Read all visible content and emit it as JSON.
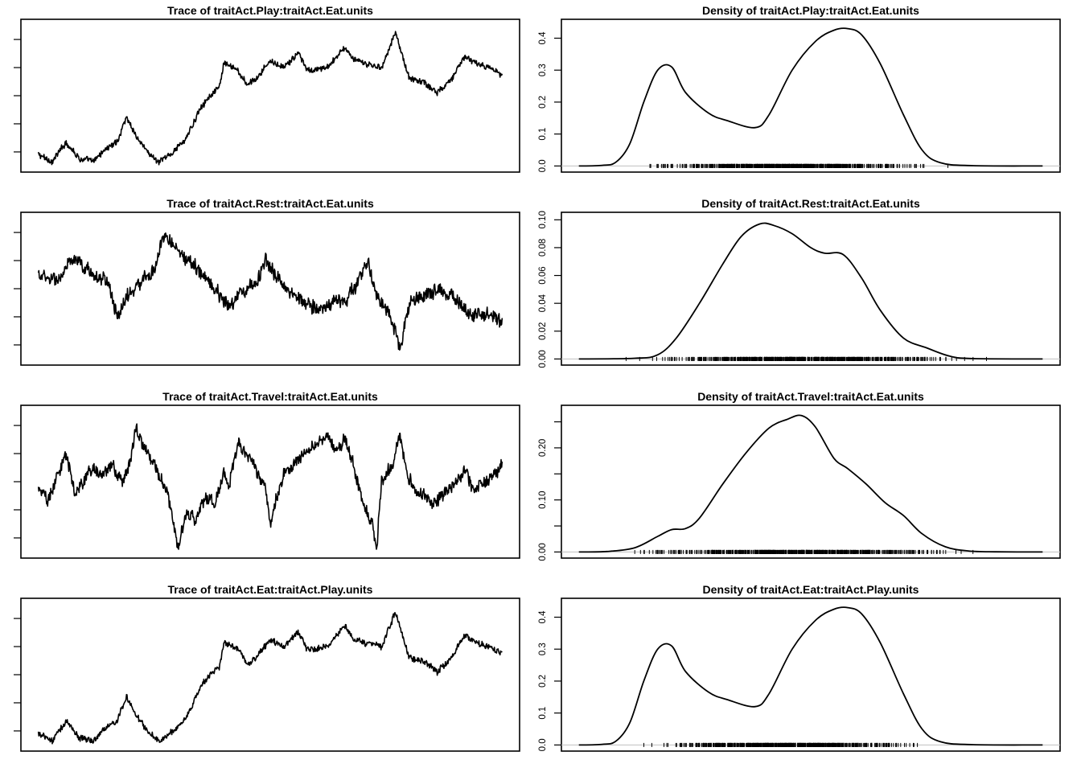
{
  "figure": {
    "colors": {
      "line": "#000000",
      "rug": "#000000",
      "baseline": "#bfbfbf",
      "frame": "#000000"
    }
  },
  "chart_data": [
    {
      "id": "trace1",
      "type": "line",
      "title": "Trace of traitAct.Play:traitAct.Eat.units",
      "xlabel": "",
      "ylabel": "",
      "ylim": [
        0,
        1
      ],
      "ytick_count": 5,
      "y_tick_labels_visible": false,
      "x_axis_visible": false,
      "noise": 0.006,
      "anchors": [
        [
          0.0,
          0.08
        ],
        [
          0.03,
          0.03
        ],
        [
          0.06,
          0.17
        ],
        [
          0.09,
          0.05
        ],
        [
          0.12,
          0.03
        ],
        [
          0.14,
          0.11
        ],
        [
          0.17,
          0.17
        ],
        [
          0.19,
          0.35
        ],
        [
          0.21,
          0.22
        ],
        [
          0.23,
          0.12
        ],
        [
          0.26,
          0.02
        ],
        [
          0.29,
          0.1
        ],
        [
          0.32,
          0.2
        ],
        [
          0.35,
          0.42
        ],
        [
          0.37,
          0.5
        ],
        [
          0.39,
          0.55
        ],
        [
          0.4,
          0.73
        ],
        [
          0.43,
          0.68
        ],
        [
          0.45,
          0.58
        ],
        [
          0.47,
          0.62
        ],
        [
          0.5,
          0.75
        ],
        [
          0.53,
          0.7
        ],
        [
          0.56,
          0.8
        ],
        [
          0.58,
          0.68
        ],
        [
          0.6,
          0.68
        ],
        [
          0.63,
          0.72
        ],
        [
          0.66,
          0.85
        ],
        [
          0.68,
          0.75
        ],
        [
          0.71,
          0.72
        ],
        [
          0.74,
          0.7
        ],
        [
          0.77,
          0.95
        ],
        [
          0.8,
          0.62
        ],
        [
          0.83,
          0.6
        ],
        [
          0.86,
          0.52
        ],
        [
          0.89,
          0.62
        ],
        [
          0.92,
          0.78
        ],
        [
          0.95,
          0.72
        ],
        [
          0.97,
          0.7
        ],
        [
          1.0,
          0.65
        ]
      ]
    },
    {
      "id": "density1",
      "type": "line",
      "title": "Density of traitAct.Play:traitAct.Eat.units",
      "xlabel": "",
      "ylabel": "",
      "xlim": [
        0,
        1
      ],
      "ylim": [
        0,
        0.44
      ],
      "yticks": [
        0.0,
        0.1,
        0.2,
        0.3,
        0.4
      ],
      "ytick_labels": [
        "0.0",
        "0.1",
        "0.2",
        "0.3",
        "0.4"
      ],
      "x_axis_visible": false,
      "curve": [
        [
          0.0,
          0.0
        ],
        [
          0.05,
          0.002
        ],
        [
          0.08,
          0.012
        ],
        [
          0.11,
          0.07
        ],
        [
          0.14,
          0.2
        ],
        [
          0.17,
          0.3
        ],
        [
          0.2,
          0.31
        ],
        [
          0.23,
          0.23
        ],
        [
          0.28,
          0.165
        ],
        [
          0.32,
          0.142
        ],
        [
          0.38,
          0.12
        ],
        [
          0.41,
          0.16
        ],
        [
          0.46,
          0.3
        ],
        [
          0.51,
          0.39
        ],
        [
          0.55,
          0.425
        ],
        [
          0.58,
          0.43
        ],
        [
          0.61,
          0.41
        ],
        [
          0.65,
          0.32
        ],
        [
          0.7,
          0.16
        ],
        [
          0.74,
          0.05
        ],
        [
          0.78,
          0.01
        ],
        [
          0.85,
          0.001
        ],
        [
          1.0,
          0.0
        ]
      ],
      "rug_range": [
        0.1,
        0.8
      ]
    },
    {
      "id": "trace2",
      "type": "line",
      "title": "Trace of traitAct.Rest:traitAct.Eat.units",
      "xlabel": "",
      "ylabel": "",
      "ylim": [
        0,
        1
      ],
      "ytick_count": 5,
      "y_tick_labels_visible": false,
      "x_axis_visible": false,
      "noise": 0.014,
      "anchors": [
        [
          0.0,
          0.6
        ],
        [
          0.04,
          0.55
        ],
        [
          0.07,
          0.7
        ],
        [
          0.1,
          0.65
        ],
        [
          0.13,
          0.58
        ],
        [
          0.15,
          0.55
        ],
        [
          0.17,
          0.3
        ],
        [
          0.19,
          0.45
        ],
        [
          0.21,
          0.5
        ],
        [
          0.23,
          0.58
        ],
        [
          0.25,
          0.62
        ],
        [
          0.27,
          0.88
        ],
        [
          0.3,
          0.78
        ],
        [
          0.32,
          0.7
        ],
        [
          0.35,
          0.62
        ],
        [
          0.38,
          0.5
        ],
        [
          0.41,
          0.38
        ],
        [
          0.43,
          0.45
        ],
        [
          0.47,
          0.55
        ],
        [
          0.49,
          0.7
        ],
        [
          0.52,
          0.55
        ],
        [
          0.55,
          0.45
        ],
        [
          0.58,
          0.4
        ],
        [
          0.61,
          0.35
        ],
        [
          0.64,
          0.42
        ],
        [
          0.66,
          0.4
        ],
        [
          0.69,
          0.55
        ],
        [
          0.71,
          0.7
        ],
        [
          0.73,
          0.45
        ],
        [
          0.75,
          0.35
        ],
        [
          0.77,
          0.2
        ],
        [
          0.78,
          0.05
        ],
        [
          0.8,
          0.4
        ],
        [
          0.83,
          0.45
        ],
        [
          0.86,
          0.5
        ],
        [
          0.89,
          0.45
        ],
        [
          0.92,
          0.35
        ],
        [
          0.95,
          0.3
        ],
        [
          0.97,
          0.33
        ],
        [
          1.0,
          0.25
        ]
      ]
    },
    {
      "id": "density2",
      "type": "line",
      "title": "Density of traitAct.Rest:traitAct.Eat.units",
      "xlabel": "",
      "ylabel": "",
      "xlim": [
        0,
        1
      ],
      "ylim": [
        0,
        0.101
      ],
      "yticks": [
        0.0,
        0.02,
        0.04,
        0.06,
        0.08,
        0.1
      ],
      "ytick_labels": [
        "0.00",
        "0.02",
        "0.04",
        "0.06",
        "0.08",
        "0.10"
      ],
      "x_axis_visible": false,
      "curve": [
        [
          0.0,
          0.0
        ],
        [
          0.12,
          0.0005
        ],
        [
          0.17,
          0.003
        ],
        [
          0.21,
          0.015
        ],
        [
          0.26,
          0.04
        ],
        [
          0.31,
          0.068
        ],
        [
          0.35,
          0.088
        ],
        [
          0.39,
          0.097
        ],
        [
          0.42,
          0.096
        ],
        [
          0.46,
          0.09
        ],
        [
          0.5,
          0.08
        ],
        [
          0.53,
          0.076
        ],
        [
          0.57,
          0.075
        ],
        [
          0.61,
          0.058
        ],
        [
          0.65,
          0.035
        ],
        [
          0.7,
          0.015
        ],
        [
          0.75,
          0.008
        ],
        [
          0.8,
          0.002
        ],
        [
          0.85,
          0.0003
        ],
        [
          1.0,
          0.0
        ]
      ],
      "rug_range": [
        0.07,
        0.9
      ]
    },
    {
      "id": "trace3",
      "type": "line",
      "title": "Trace of traitAct.Travel:traitAct.Eat.units",
      "xlabel": "",
      "ylabel": "",
      "ylim": [
        0,
        1
      ],
      "ytick_count": 5,
      "y_tick_labels_visible": false,
      "x_axis_visible": false,
      "noise": 0.013,
      "anchors": [
        [
          0.0,
          0.48
        ],
        [
          0.02,
          0.35
        ],
        [
          0.04,
          0.55
        ],
        [
          0.06,
          0.7
        ],
        [
          0.08,
          0.4
        ],
        [
          0.1,
          0.52
        ],
        [
          0.12,
          0.6
        ],
        [
          0.14,
          0.55
        ],
        [
          0.16,
          0.62
        ],
        [
          0.18,
          0.48
        ],
        [
          0.2,
          0.68
        ],
        [
          0.21,
          0.9
        ],
        [
          0.22,
          0.8
        ],
        [
          0.24,
          0.68
        ],
        [
          0.26,
          0.55
        ],
        [
          0.28,
          0.4
        ],
        [
          0.29,
          0.25
        ],
        [
          0.3,
          0.05
        ],
        [
          0.32,
          0.28
        ],
        [
          0.34,
          0.22
        ],
        [
          0.36,
          0.4
        ],
        [
          0.38,
          0.35
        ],
        [
          0.4,
          0.55
        ],
        [
          0.41,
          0.45
        ],
        [
          0.43,
          0.78
        ],
        [
          0.45,
          0.7
        ],
        [
          0.47,
          0.58
        ],
        [
          0.49,
          0.45
        ],
        [
          0.5,
          0.2
        ],
        [
          0.51,
          0.35
        ],
        [
          0.53,
          0.55
        ],
        [
          0.56,
          0.68
        ],
        [
          0.58,
          0.72
        ],
        [
          0.6,
          0.75
        ],
        [
          0.62,
          0.82
        ],
        [
          0.64,
          0.72
        ],
        [
          0.66,
          0.82
        ],
        [
          0.68,
          0.6
        ],
        [
          0.7,
          0.35
        ],
        [
          0.72,
          0.2
        ],
        [
          0.73,
          0.05
        ],
        [
          0.74,
          0.52
        ],
        [
          0.76,
          0.6
        ],
        [
          0.78,
          0.82
        ],
        [
          0.8,
          0.5
        ],
        [
          0.82,
          0.42
        ],
        [
          0.85,
          0.35
        ],
        [
          0.87,
          0.4
        ],
        [
          0.9,
          0.5
        ],
        [
          0.92,
          0.58
        ],
        [
          0.94,
          0.45
        ],
        [
          0.96,
          0.5
        ],
        [
          0.98,
          0.55
        ],
        [
          1.0,
          0.62
        ]
      ]
    },
    {
      "id": "density3",
      "type": "line",
      "title": "Density of traitAct.Travel:traitAct.Eat.units",
      "xlabel": "",
      "ylabel": "",
      "xlim": [
        0,
        1
      ],
      "ylim": [
        0,
        0.27
      ],
      "yticks": [
        0.0,
        0.1,
        0.2
      ],
      "ytick_labels": [
        "0.00",
        "0.10",
        "0.20"
      ],
      "y_minor_ticks": [
        0.05,
        0.15,
        0.25
      ],
      "x_axis_visible": false,
      "curve": [
        [
          0.0,
          0.0
        ],
        [
          0.06,
          0.001
        ],
        [
          0.12,
          0.008
        ],
        [
          0.17,
          0.03
        ],
        [
          0.2,
          0.043
        ],
        [
          0.23,
          0.045
        ],
        [
          0.26,
          0.065
        ],
        [
          0.31,
          0.13
        ],
        [
          0.36,
          0.19
        ],
        [
          0.41,
          0.238
        ],
        [
          0.45,
          0.255
        ],
        [
          0.48,
          0.262
        ],
        [
          0.51,
          0.24
        ],
        [
          0.55,
          0.18
        ],
        [
          0.58,
          0.16
        ],
        [
          0.62,
          0.13
        ],
        [
          0.66,
          0.095
        ],
        [
          0.7,
          0.07
        ],
        [
          0.74,
          0.035
        ],
        [
          0.79,
          0.01
        ],
        [
          0.84,
          0.002
        ],
        [
          0.9,
          0.0003
        ],
        [
          1.0,
          0.0
        ]
      ],
      "rug_range": [
        0.06,
        0.88
      ]
    },
    {
      "id": "trace4",
      "type": "line",
      "title": "Trace of traitAct.Eat:traitAct.Play.units",
      "xlabel": "",
      "ylabel": "",
      "ylim": [
        0,
        1
      ],
      "ytick_count": 5,
      "y_tick_labels_visible": false,
      "x_axis_visible": false,
      "noise": 0.006,
      "anchors": [
        [
          0.0,
          0.08
        ],
        [
          0.03,
          0.03
        ],
        [
          0.06,
          0.17
        ],
        [
          0.09,
          0.05
        ],
        [
          0.12,
          0.03
        ],
        [
          0.14,
          0.11
        ],
        [
          0.17,
          0.17
        ],
        [
          0.19,
          0.35
        ],
        [
          0.21,
          0.22
        ],
        [
          0.23,
          0.12
        ],
        [
          0.26,
          0.02
        ],
        [
          0.29,
          0.1
        ],
        [
          0.32,
          0.2
        ],
        [
          0.35,
          0.42
        ],
        [
          0.37,
          0.5
        ],
        [
          0.39,
          0.55
        ],
        [
          0.4,
          0.73
        ],
        [
          0.43,
          0.68
        ],
        [
          0.45,
          0.58
        ],
        [
          0.47,
          0.62
        ],
        [
          0.5,
          0.75
        ],
        [
          0.53,
          0.7
        ],
        [
          0.56,
          0.8
        ],
        [
          0.58,
          0.68
        ],
        [
          0.6,
          0.68
        ],
        [
          0.63,
          0.72
        ],
        [
          0.66,
          0.85
        ],
        [
          0.68,
          0.75
        ],
        [
          0.71,
          0.72
        ],
        [
          0.74,
          0.7
        ],
        [
          0.77,
          0.95
        ],
        [
          0.8,
          0.62
        ],
        [
          0.83,
          0.6
        ],
        [
          0.86,
          0.52
        ],
        [
          0.89,
          0.62
        ],
        [
          0.92,
          0.78
        ],
        [
          0.95,
          0.72
        ],
        [
          0.97,
          0.7
        ],
        [
          1.0,
          0.65
        ]
      ]
    },
    {
      "id": "density4",
      "type": "line",
      "title": "Density of traitAct.Eat:traitAct.Play.units",
      "xlabel": "",
      "ylabel": "",
      "xlim": [
        0,
        1
      ],
      "ylim": [
        0,
        0.44
      ],
      "yticks": [
        0.0,
        0.1,
        0.2,
        0.3,
        0.4
      ],
      "ytick_labels": [
        "0.0",
        "0.1",
        "0.2",
        "0.3",
        "0.4"
      ],
      "x_axis_visible": false,
      "curve": [
        [
          0.0,
          0.0
        ],
        [
          0.05,
          0.002
        ],
        [
          0.08,
          0.012
        ],
        [
          0.11,
          0.07
        ],
        [
          0.14,
          0.2
        ],
        [
          0.17,
          0.3
        ],
        [
          0.2,
          0.31
        ],
        [
          0.23,
          0.23
        ],
        [
          0.28,
          0.165
        ],
        [
          0.32,
          0.142
        ],
        [
          0.38,
          0.12
        ],
        [
          0.41,
          0.16
        ],
        [
          0.46,
          0.3
        ],
        [
          0.51,
          0.39
        ],
        [
          0.55,
          0.425
        ],
        [
          0.58,
          0.43
        ],
        [
          0.61,
          0.41
        ],
        [
          0.65,
          0.32
        ],
        [
          0.7,
          0.16
        ],
        [
          0.74,
          0.05
        ],
        [
          0.78,
          0.01
        ],
        [
          0.85,
          0.001
        ],
        [
          1.0,
          0.0
        ]
      ],
      "rug_range": [
        0.1,
        0.8
      ]
    }
  ]
}
